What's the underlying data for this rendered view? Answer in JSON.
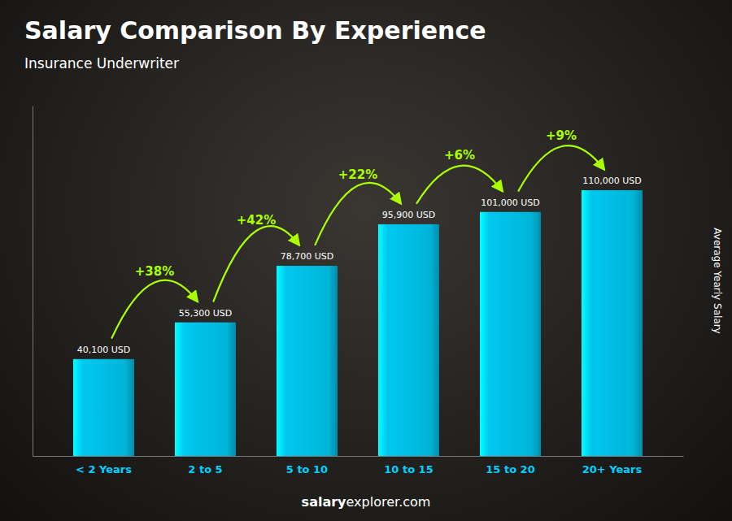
{
  "chart_data": {
    "type": "bar",
    "title": "Salary Comparison By Experience",
    "subtitle": "Insurance Underwriter",
    "ylabel": "Average Yearly Salary",
    "footer": [
      "salary",
      "explorer.com"
    ],
    "categories": [
      "< 2 Years",
      "2 to 5",
      "5 to 10",
      "10 to 15",
      "15 to 20",
      "20+ Years"
    ],
    "values": [
      40100,
      55300,
      78700,
      95900,
      101000,
      110000
    ],
    "value_labels": [
      "40,100 USD",
      "55,300 USD",
      "78,700 USD",
      "95,900 USD",
      "101,000 USD",
      "110,000 USD"
    ],
    "data_labels": true,
    "annotations": [
      "+38%",
      "+42%",
      "+22%",
      "+6%",
      "+9%"
    ],
    "color": "#00c8f0",
    "ylim": [
      0,
      145000
    ],
    "yticks": [],
    "tick_labels": "x",
    "grid": false
  }
}
